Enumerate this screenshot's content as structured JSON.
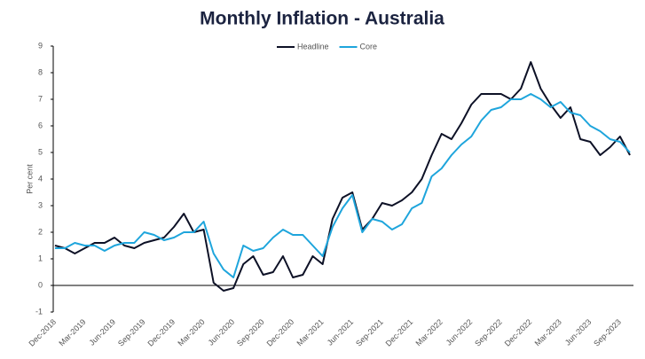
{
  "chart_data": {
    "type": "line",
    "title": "Monthly Inflation - Australia",
    "y_label": "Per cent",
    "categories": [
      "Dec-2018",
      null,
      null,
      "Mar-2019",
      null,
      null,
      "Jun-2019",
      null,
      null,
      "Sep-2019",
      null,
      null,
      "Dec-2019",
      null,
      null,
      "Mar-2020",
      null,
      null,
      "Jun-2020",
      null,
      null,
      "Sep-2020",
      null,
      null,
      "Dec-2020",
      null,
      null,
      "Mar-2021",
      null,
      null,
      "Jun-2021",
      null,
      null,
      "Sep-2021",
      null,
      null,
      "Dec-2021",
      null,
      null,
      "Mar-2022",
      null,
      null,
      "Jun-2022",
      null,
      null,
      "Sep-2022",
      null,
      null,
      "Dec-2022",
      null,
      null,
      "Mar-2023",
      null,
      null,
      "Jun-2023",
      null,
      null,
      "Sep-2023",
      null
    ],
    "series": [
      {
        "name": "Headline",
        "color": "#0d1126",
        "values": [
          1.5,
          1.4,
          1.2,
          1.4,
          1.6,
          1.6,
          1.8,
          1.5,
          1.4,
          1.6,
          1.7,
          1.8,
          2.2,
          2.7,
          2.0,
          2.1,
          0.1,
          -0.2,
          -0.1,
          0.8,
          1.1,
          0.4,
          0.5,
          1.1,
          0.3,
          0.4,
          1.1,
          0.8,
          2.5,
          3.3,
          3.5,
          2.1,
          2.5,
          3.1,
          3.0,
          3.2,
          3.5,
          4.0,
          4.9,
          5.7,
          5.5,
          6.1,
          6.8,
          7.2,
          7.2,
          7.2,
          7.0,
          7.4,
          8.4,
          7.4,
          6.8,
          6.3,
          6.7,
          5.5,
          5.4,
          4.9,
          5.2,
          5.6,
          4.9
        ]
      },
      {
        "name": "Core",
        "color": "#1ea5dc",
        "values": [
          1.4,
          1.4,
          1.6,
          1.5,
          1.5,
          1.3,
          1.5,
          1.6,
          1.6,
          2.0,
          1.9,
          1.7,
          1.8,
          2.0,
          2.0,
          2.4,
          1.2,
          0.6,
          0.3,
          1.5,
          1.3,
          1.4,
          1.8,
          2.1,
          1.9,
          1.9,
          1.5,
          1.1,
          2.2,
          2.9,
          3.4,
          2.0,
          2.5,
          2.4,
          2.1,
          2.3,
          2.9,
          3.1,
          4.1,
          4.4,
          4.9,
          5.3,
          5.6,
          6.2,
          6.6,
          6.7,
          7.0,
          7.0,
          7.2,
          7.0,
          6.7,
          6.9,
          6.5,
          6.4,
          6.0,
          5.8,
          5.5,
          5.4,
          5.0
        ]
      }
    ],
    "ylim": [
      -1,
      9
    ],
    "yticks": [
      -1,
      0,
      1,
      2,
      3,
      4,
      5,
      6,
      7,
      8,
      9
    ],
    "grid": false,
    "legend": "top"
  }
}
